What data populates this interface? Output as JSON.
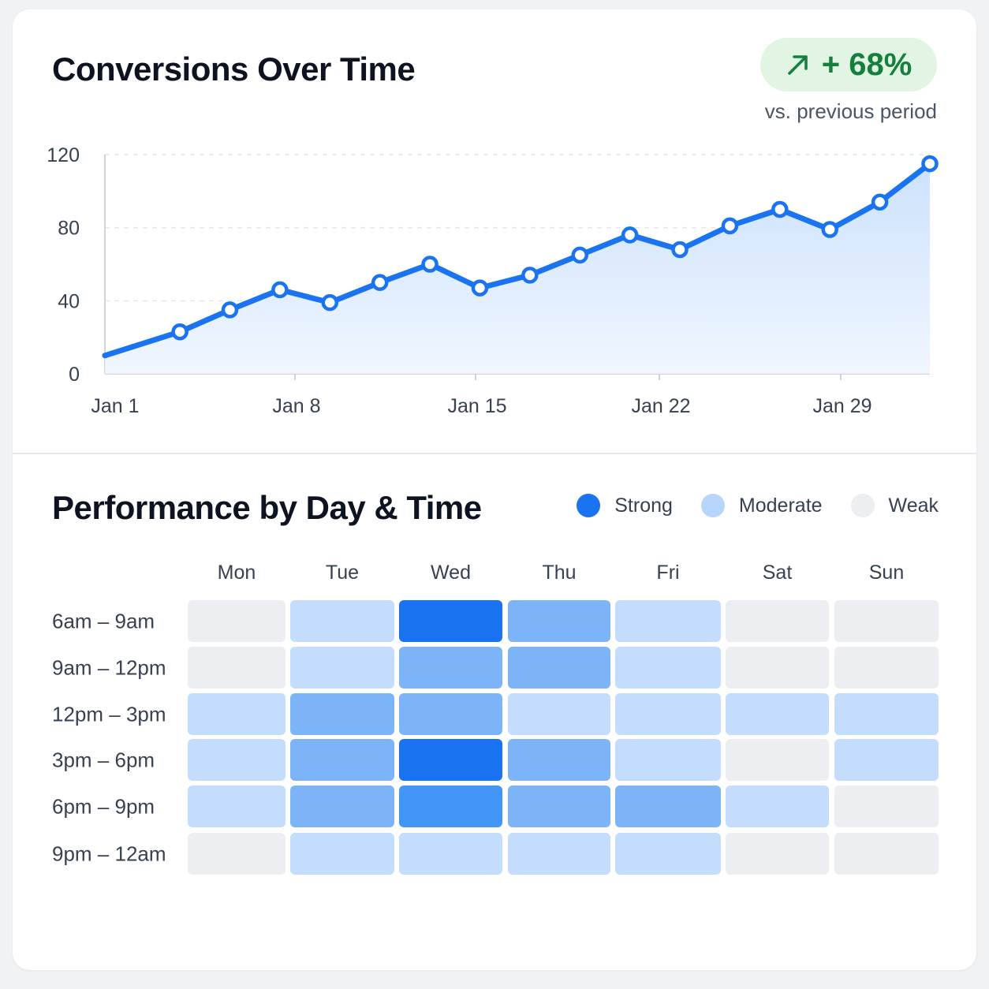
{
  "line_section": {
    "title": "Conversions Over Time",
    "badge": {
      "icon": "arrow-up-right-icon",
      "value": "+ 68%",
      "subtitle": "vs. previous period"
    }
  },
  "heat_section": {
    "title": "Performance by Day & Time",
    "legend": [
      {
        "label": "Strong",
        "color": "#1a73f0"
      },
      {
        "label": "Moderate",
        "color": "#b7d6fb"
      },
      {
        "label": "Weak",
        "color": "#eceef1"
      }
    ]
  },
  "colors": {
    "accent": "#1a73f0",
    "positive": "#15803d",
    "positive_bg": "#e2f5e2"
  },
  "chart_data": [
    {
      "type": "line",
      "title": "Conversions Over Time",
      "x_tick_labels": [
        "Jan 1",
        "Jan 8",
        "Jan 15",
        "Jan 22",
        "Jan 29"
      ],
      "y_ticks": [
        0,
        40,
        80,
        120
      ],
      "ylim": [
        0,
        120
      ],
      "grid": true,
      "fill_area": true,
      "series": [
        {
          "x": [
            "Dec 31",
            "Jan 3",
            "Jan 5",
            "Jan 7",
            "Jan 9",
            "Jan 11",
            "Jan 13",
            "Jan 15",
            "Jan 17",
            "Jan 19",
            "Jan 21",
            "Jan 23",
            "Jan 25",
            "Jan 27",
            "Jan 29",
            "Jan 31",
            "Feb 2"
          ],
          "values": [
            10,
            23,
            35,
            46,
            39,
            50,
            60,
            47,
            54,
            65,
            76,
            68,
            81,
            90,
            79,
            94,
            115
          ]
        }
      ]
    },
    {
      "type": "heatmap",
      "title": "Performance by Day & Time",
      "columns": [
        "Mon",
        "Tue",
        "Wed",
        "Thu",
        "Fri",
        "Sat",
        "Sun"
      ],
      "rows": [
        "6am – 9am",
        "9am – 12pm",
        "12pm – 3pm",
        "3pm – 6pm",
        "6pm – 9pm",
        "9pm – 12am"
      ],
      "scale": [
        "Weak",
        "Moderate",
        "Strong"
      ],
      "values": [
        [
          0,
          1,
          5,
          3,
          1,
          0,
          0
        ],
        [
          0,
          1,
          3,
          3,
          1,
          0,
          0
        ],
        [
          1,
          3,
          3,
          1,
          1,
          1,
          1
        ],
        [
          1,
          3,
          5,
          3,
          1,
          0,
          1
        ],
        [
          1,
          3,
          4,
          3,
          3,
          1,
          0
        ],
        [
          0,
          1,
          1,
          1,
          1,
          0,
          0
        ]
      ]
    }
  ]
}
